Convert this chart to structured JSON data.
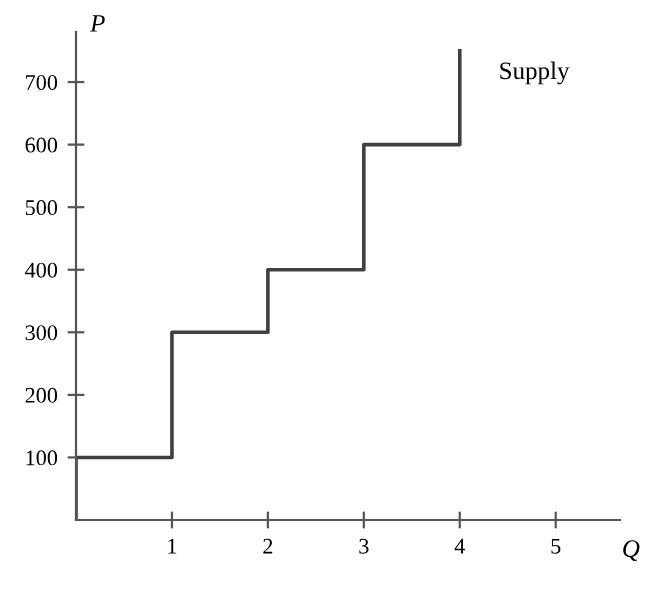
{
  "chart_data": {
    "type": "line",
    "xlabel": "Q",
    "ylabel": "P",
    "series": [
      {
        "name": "Supply",
        "color": "#404040",
        "x": [
          0,
          0,
          1,
          1,
          2,
          2,
          3,
          3,
          4,
          4
        ],
        "values": [
          0,
          100,
          100,
          300,
          300,
          400,
          400,
          600,
          600,
          750
        ]
      }
    ],
    "xlim": [
      0,
      5.67
    ],
    "ylim": [
      0,
      780
    ],
    "xticks": [
      1,
      2,
      3,
      4,
      5
    ],
    "yticks": [
      100,
      200,
      300,
      400,
      500,
      600,
      700
    ],
    "grid": false,
    "legend": false,
    "marker": "none",
    "line_style": "solid"
  }
}
